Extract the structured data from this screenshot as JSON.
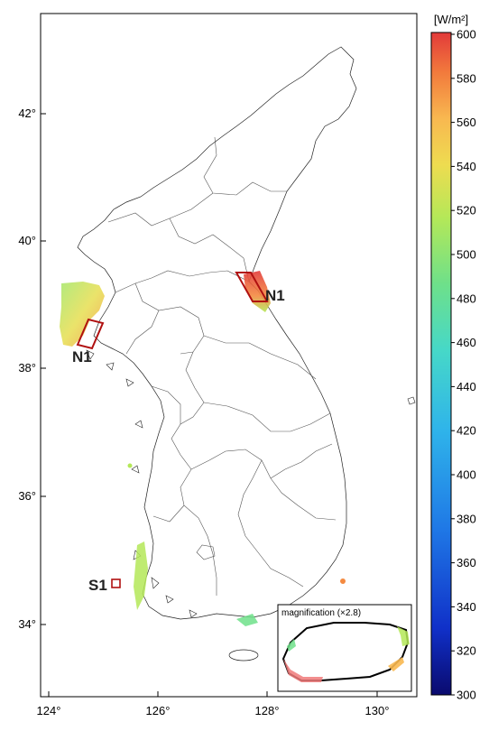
{
  "map": {
    "lon_ticks": [
      "124°",
      "126°",
      "128°",
      "130°"
    ],
    "lat_ticks": [
      "42°",
      "40°",
      "38°",
      "36°",
      "34°"
    ],
    "lon_range": [
      123.85,
      130.65
    ],
    "lat_range": [
      32.7,
      43.6
    ]
  },
  "sites": [
    {
      "label": "N1",
      "kind": "west"
    },
    {
      "label": "N1",
      "kind": "east"
    },
    {
      "label": "S1",
      "kind": "south"
    }
  ],
  "inset": {
    "title": "magnification (×2.8)"
  },
  "colorbar": {
    "unit": "[W/m²]",
    "min": 300,
    "max": 600,
    "tick_labels": [
      "600",
      "580",
      "560",
      "540",
      "520",
      "500",
      "480",
      "460",
      "440",
      "420",
      "400",
      "380",
      "360",
      "340",
      "320",
      "300"
    ],
    "colors": [
      "#0a0a6e",
      "#1030c8",
      "#1f78e6",
      "#2fb4ea",
      "#46d8c8",
      "#6ee08a",
      "#b4e858",
      "#eedc50",
      "#f8b850",
      "#f27a3c",
      "#e23a3a"
    ]
  }
}
